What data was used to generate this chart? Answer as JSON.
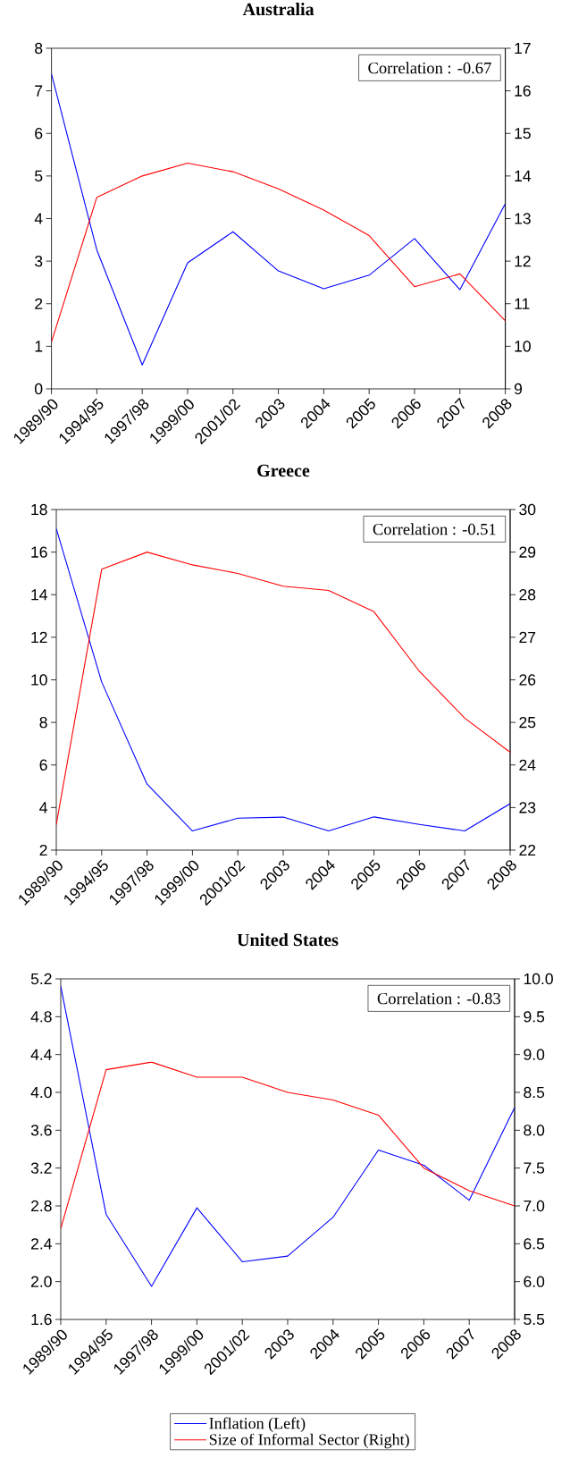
{
  "chart_data": [
    {
      "type": "line",
      "title": "Australia",
      "categories": [
        "1989/90",
        "1994/95",
        "1997/98",
        "1999/00",
        "2001/02",
        "2003",
        "2004",
        "2005",
        "2006",
        "2007",
        "2008"
      ],
      "series": [
        {
          "color": "#0000ff",
          "values": [
            7.4,
            3.26,
            0.56,
            2.96,
            3.69,
            2.77,
            2.35,
            2.67,
            3.53,
            2.33,
            4.35
          ]
        },
        {
          "color": "#ff0000",
          "axis": "y2",
          "values": [
            10.1,
            13.5,
            14.0,
            14.3,
            14.1,
            13.7,
            13.2,
            12.6,
            11.4,
            11.7,
            10.6
          ]
        }
      ],
      "ylim": [
        0,
        8
      ],
      "yticks": [
        0,
        1,
        2,
        3,
        4,
        5,
        6,
        7,
        8
      ],
      "y2lim": [
        9,
        17
      ],
      "y2ticks": [
        9,
        10,
        11,
        12,
        13,
        14,
        15,
        16,
        17
      ],
      "annotations": [
        "Correlation : -0.67"
      ]
    },
    {
      "type": "line",
      "title": "Greece",
      "categories": [
        "1989/90",
        "1994/95",
        "1997/98",
        "1999/00",
        "2001/02",
        "2003",
        "2004",
        "2005",
        "2006",
        "2007",
        "2008"
      ],
      "series": [
        {
          "color": "#0000ff",
          "values": [
            17.1,
            9.9,
            5.1,
            2.9,
            3.5,
            3.55,
            2.9,
            3.56,
            3.21,
            2.9,
            4.18
          ]
        },
        {
          "color": "#ff0000",
          "axis": "y2",
          "values": [
            22.6,
            28.6,
            29.0,
            28.7,
            28.5,
            28.2,
            28.1,
            27.6,
            26.2,
            25.1,
            24.3
          ]
        }
      ],
      "ylim": [
        2,
        18
      ],
      "yticks": [
        2,
        4,
        6,
        8,
        10,
        12,
        14,
        16,
        18
      ],
      "y2lim": [
        22,
        30
      ],
      "y2ticks": [
        22,
        23,
        24,
        25,
        26,
        27,
        28,
        29,
        30
      ],
      "annotations": [
        "Correlation : -0.51"
      ]
    },
    {
      "type": "line",
      "title": "United States",
      "categories": [
        "1989/90",
        "1994/95",
        "1997/98",
        "1999/00",
        "2001/02",
        "2003",
        "2004",
        "2005",
        "2006",
        "2007",
        "2008"
      ],
      "series": [
        {
          "name": "Inflation (Left)",
          "color": "#0000ff",
          "values": [
            5.12,
            2.71,
            1.95,
            2.78,
            2.21,
            2.27,
            2.68,
            3.39,
            3.23,
            2.86,
            3.84
          ]
        },
        {
          "name": "Size of Informal Sector (Right)",
          "color": "#ff0000",
          "axis": "y2",
          "values": [
            6.7,
            8.8,
            8.9,
            8.7,
            8.7,
            8.5,
            8.4,
            8.2,
            7.5,
            7.2,
            7.0
          ]
        }
      ],
      "ylim": [
        1.6,
        5.2
      ],
      "yticks": [
        1.6,
        {
          "value": 2.0,
          "label": "2.0"
        },
        2.4,
        2.8,
        3.2,
        3.6,
        {
          "value": 4.0,
          "label": "4.0"
        },
        4.4,
        4.8,
        5.2
      ],
      "y2lim": [
        5.5,
        10.0
      ],
      "y2ticks": [
        5.5,
        {
          "value": 6.0,
          "label": "6.0"
        },
        6.5,
        {
          "value": 7.0,
          "label": "7.0"
        },
        7.5,
        {
          "value": 8.0,
          "label": "8.0"
        },
        8.5,
        {
          "value": 9.0,
          "label": "9.0"
        },
        9.5,
        {
          "value": 10.0,
          "label": "10.0"
        }
      ],
      "annotations": [
        "Correlation : -0.83"
      ],
      "legend": "bottom"
    }
  ]
}
